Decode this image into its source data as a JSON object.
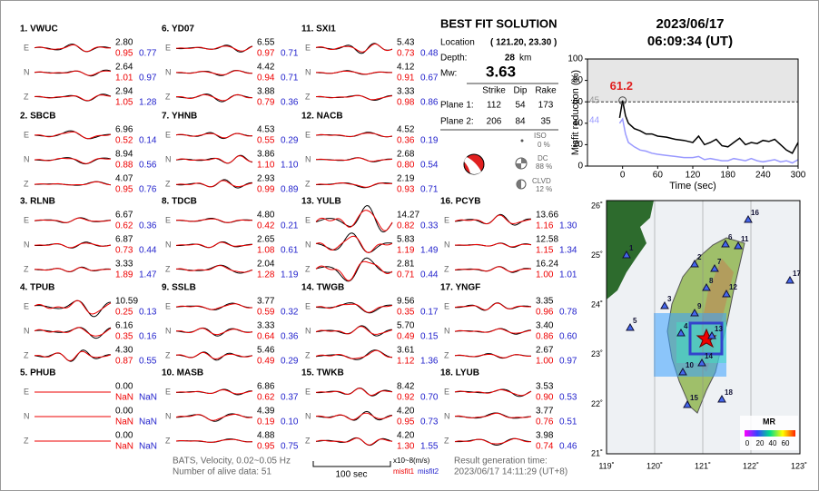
{
  "components": [
    "E",
    "N",
    "Z"
  ],
  "stations": [
    {
      "label": "1.  VWUC",
      "traces": [
        {
          "amp": "2.80",
          "misfit1": "0.95",
          "misfit2": "0.77"
        },
        {
          "amp": "2.64",
          "misfit1": "1.01",
          "misfit2": "0.97"
        },
        {
          "amp": "2.94",
          "misfit1": "1.05",
          "misfit2": "1.28"
        }
      ]
    },
    {
      "label": "2.  SBCB",
      "traces": [
        {
          "amp": "6.96",
          "misfit1": "0.52",
          "misfit2": "0.14"
        },
        {
          "amp": "8.94",
          "misfit1": "0.88",
          "misfit2": "0.56"
        },
        {
          "amp": "4.07",
          "misfit1": "0.95",
          "misfit2": "0.76"
        }
      ]
    },
    {
      "label": "3.  RLNB",
      "traces": [
        {
          "amp": "6.67",
          "misfit1": "0.62",
          "misfit2": "0.36"
        },
        {
          "amp": "6.87",
          "misfit1": "0.73",
          "misfit2": "0.44"
        },
        {
          "amp": "3.33",
          "misfit1": "1.89",
          "misfit2": "1.47"
        }
      ]
    },
    {
      "label": "4.  TPUB",
      "traces": [
        {
          "amp": "10.59",
          "misfit1": "0.25",
          "misfit2": "0.13"
        },
        {
          "amp": "6.16",
          "misfit1": "0.35",
          "misfit2": "0.16"
        },
        {
          "amp": "4.30",
          "misfit1": "0.87",
          "misfit2": "0.55"
        }
      ]
    },
    {
      "label": "5.  PHUB",
      "traces": [
        {
          "amp": "0.00",
          "misfit1": "NaN",
          "misfit2": "NaN"
        },
        {
          "amp": "0.00",
          "misfit1": "NaN",
          "misfit2": "NaN"
        },
        {
          "amp": "0.00",
          "misfit1": "NaN",
          "misfit2": "NaN"
        }
      ]
    },
    {
      "label": "6.  YD07",
      "traces": [
        {
          "amp": "6.55",
          "misfit1": "0.97",
          "misfit2": "0.71"
        },
        {
          "amp": "4.42",
          "misfit1": "0.94",
          "misfit2": "0.71"
        },
        {
          "amp": "3.88",
          "misfit1": "0.79",
          "misfit2": "0.36"
        }
      ]
    },
    {
      "label": "7.  YHNB",
      "traces": [
        {
          "amp": "4.53",
          "misfit1": "0.55",
          "misfit2": "0.29"
        },
        {
          "amp": "3.86",
          "misfit1": "1.10",
          "misfit2": "1.10"
        },
        {
          "amp": "2.93",
          "misfit1": "0.99",
          "misfit2": "0.89"
        }
      ]
    },
    {
      "label": "8.  TDCB",
      "traces": [
        {
          "amp": "4.80",
          "misfit1": "0.42",
          "misfit2": "0.21"
        },
        {
          "amp": "2.65",
          "misfit1": "1.08",
          "misfit2": "0.61"
        },
        {
          "amp": "2.04",
          "misfit1": "1.28",
          "misfit2": "1.19"
        }
      ]
    },
    {
      "label": "9.  SSLB",
      "traces": [
        {
          "amp": "3.77",
          "misfit1": "0.59",
          "misfit2": "0.32"
        },
        {
          "amp": "3.33",
          "misfit1": "0.64",
          "misfit2": "0.36"
        },
        {
          "amp": "5.46",
          "misfit1": "0.49",
          "misfit2": "0.29"
        }
      ]
    },
    {
      "label": "10.  MASB",
      "traces": [
        {
          "amp": "6.86",
          "misfit1": "0.62",
          "misfit2": "0.37"
        },
        {
          "amp": "4.39",
          "misfit1": "0.19",
          "misfit2": "0.10"
        },
        {
          "amp": "4.88",
          "misfit1": "0.95",
          "misfit2": "0.75"
        }
      ]
    },
    {
      "label": "11.  SXI1",
      "traces": [
        {
          "amp": "5.43",
          "misfit1": "0.73",
          "misfit2": "0.48"
        },
        {
          "amp": "4.12",
          "misfit1": "0.91",
          "misfit2": "0.67"
        },
        {
          "amp": "3.33",
          "misfit1": "0.98",
          "misfit2": "0.86"
        }
      ]
    },
    {
      "label": "12.  NACB",
      "traces": [
        {
          "amp": "4.52",
          "misfit1": "0.36",
          "misfit2": "0.19"
        },
        {
          "amp": "2.68",
          "misfit1": "0.80",
          "misfit2": "0.54"
        },
        {
          "amp": "2.19",
          "misfit1": "0.93",
          "misfit2": "0.71"
        }
      ]
    },
    {
      "label": "13.  YULB",
      "traces": [
        {
          "amp": "14.27",
          "misfit1": "0.82",
          "misfit2": "0.33"
        },
        {
          "amp": "5.83",
          "misfit1": "1.19",
          "misfit2": "1.49"
        },
        {
          "amp": "2.81",
          "misfit1": "0.71",
          "misfit2": "0.44"
        }
      ]
    },
    {
      "label": "14.  TWGB",
      "traces": [
        {
          "amp": "9.56",
          "misfit1": "0.35",
          "misfit2": "0.17"
        },
        {
          "amp": "5.70",
          "misfit1": "0.49",
          "misfit2": "0.15"
        },
        {
          "amp": "3.61",
          "misfit1": "1.12",
          "misfit2": "1.36"
        }
      ]
    },
    {
      "label": "15.  TWKB",
      "traces": [
        {
          "amp": "8.42",
          "misfit1": "0.92",
          "misfit2": "0.70"
        },
        {
          "amp": "4.20",
          "misfit1": "0.95",
          "misfit2": "0.73"
        },
        {
          "amp": "4.20",
          "misfit1": "1.30",
          "misfit2": "1.55"
        }
      ]
    },
    {
      "label": "16.  PCYB",
      "traces": [
        {
          "amp": "13.66",
          "misfit1": "1.16",
          "misfit2": "1.30"
        },
        {
          "amp": "12.58",
          "misfit1": "1.15",
          "misfit2": "1.34"
        },
        {
          "amp": "16.24",
          "misfit1": "1.00",
          "misfit2": "1.01"
        }
      ]
    },
    {
      "label": "17.  YNGF",
      "traces": [
        {
          "amp": "3.35",
          "misfit1": "0.96",
          "misfit2": "0.78"
        },
        {
          "amp": "3.40",
          "misfit1": "0.86",
          "misfit2": "0.60"
        },
        {
          "amp": "2.67",
          "misfit1": "1.00",
          "misfit2": "0.97"
        }
      ]
    },
    {
      "label": "18.  LYUB",
      "traces": [
        {
          "amp": "3.53",
          "misfit1": "0.90",
          "misfit2": "0.53"
        },
        {
          "amp": "3.77",
          "misfit1": "0.76",
          "misfit2": "0.51"
        },
        {
          "amp": "3.98",
          "misfit1": "0.74",
          "misfit2": "0.46"
        }
      ]
    }
  ],
  "solution": {
    "title": "BEST FIT SOLUTION",
    "location_label": "Location",
    "location": "( 121.20, 23.30 )",
    "depth_label": "Depth:",
    "depth": "28",
    "depth_unit": "km",
    "mw_label": "Mw:",
    "mw": "3.63",
    "headers": [
      "Strike",
      "Dip",
      "Rake"
    ],
    "planes": [
      {
        "label": "Plane 1:",
        "values": [
          "112",
          "54",
          "173"
        ]
      },
      {
        "label": "Plane 2:",
        "values": [
          "206",
          "84",
          "35"
        ]
      }
    ],
    "iso_label": "ISO",
    "iso": "0 %",
    "dc_label": "DC",
    "dc": "88 %",
    "clvd_label": "CLVD",
    "clvd": "12 %"
  },
  "date": "2023/06/17",
  "time": "06:09:34  (UT)",
  "chart_data": {
    "type": "line",
    "xlabel": "Time (sec)",
    "ylabel": "Misfit reduction (%)",
    "xlim": [
      -60,
      300
    ],
    "xticks": [
      0,
      60,
      120,
      180,
      240,
      300
    ],
    "ylim": [
      0,
      100
    ],
    "yticks": [
      0,
      20,
      40,
      60,
      80,
      100
    ],
    "x": [
      -5,
      0,
      5,
      10,
      20,
      30,
      40,
      50,
      60,
      75,
      90,
      105,
      120,
      130,
      140,
      150,
      160,
      170,
      180,
      190,
      200,
      210,
      220,
      230,
      240,
      250,
      260,
      270,
      280,
      290,
      300
    ],
    "series": [
      {
        "color": "#000000",
        "values": [
          45,
          61.2,
          47,
          40,
          35,
          33,
          30,
          30,
          28,
          27,
          25,
          24,
          22,
          28,
          20,
          22,
          25,
          19,
          18,
          22,
          26,
          20,
          22,
          21,
          24,
          23,
          25,
          20,
          15,
          12,
          22
        ]
      },
      {
        "color": "#9999ff",
        "values": [
          40,
          44,
          30,
          22,
          18,
          15,
          14,
          12,
          11,
          10,
          9,
          8,
          8,
          9,
          6,
          7,
          6,
          5,
          5,
          7,
          6,
          5,
          7,
          5,
          4,
          5,
          6,
          4,
          5,
          3,
          6
        ]
      }
    ],
    "best_x": 0,
    "best_value": 61.2,
    "side_labels": [
      {
        "value": 45,
        "color": "#999999"
      },
      {
        "value": 44,
        "color": "#9999ff"
      }
    ]
  },
  "map": {
    "lat_ticks": [
      "26˚",
      "25˚",
      "24˚",
      "23˚",
      "22˚",
      "21˚"
    ],
    "lon_ticks": [
      "119˚",
      "120˚",
      "121˚",
      "122˚",
      "123˚"
    ],
    "station_labels": [
      "1",
      "2",
      "3",
      "4",
      "5",
      "6",
      "7",
      "8",
      "9",
      "10",
      "11",
      "12",
      "13",
      "14",
      "15",
      "16",
      "17",
      "18"
    ],
    "legend_title": "MR",
    "legend_ticks": [
      "0",
      "20",
      "40",
      "60"
    ]
  },
  "footer": {
    "network": "BATS, Velocity, 0.02~0.05 Hz",
    "alive": "Number of alive data: 51",
    "scale": "100 sec",
    "unit": "x10~8(m/s)",
    "misfit1": "misfit1",
    "misfit2": "misfit2",
    "result_label": "Result generation time:",
    "result_time": "2023/06/17 14:11:29 (UT+8)"
  }
}
